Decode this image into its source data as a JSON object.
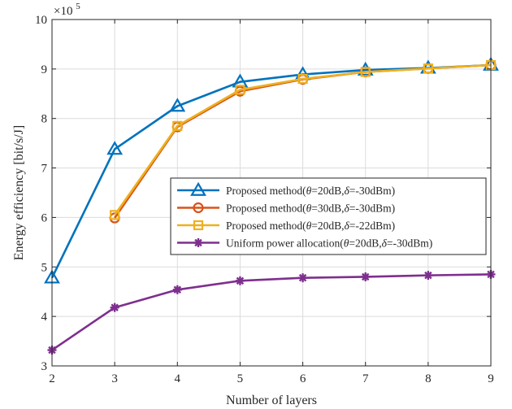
{
  "chart_data": {
    "type": "line",
    "xlabel": "Number of layers",
    "ylabel": "Energy efficiency [bit/s/J]",
    "y_exponent_label": "×10",
    "y_exponent_power": "5",
    "y_scale_factor": 100000,
    "xlim": [
      2,
      9
    ],
    "ylim": [
      3,
      10
    ],
    "x_ticks": [
      "2",
      "3",
      "4",
      "5",
      "6",
      "7",
      "8",
      "9"
    ],
    "y_ticks": [
      "3",
      "4",
      "5",
      "6",
      "7",
      "8",
      "9",
      "10"
    ],
    "grid": true,
    "legend_position": "center-right",
    "series": [
      {
        "name_parts": [
          "Proposed method(",
          "θ",
          "=20dB,",
          "δ",
          "=-30dBm)"
        ],
        "color": "#0072BD",
        "marker": "triangle",
        "x": [
          2,
          3,
          4,
          5,
          6,
          7,
          8,
          9
        ],
        "values": [
          4.78,
          7.38,
          8.25,
          8.74,
          8.89,
          8.98,
          9.02,
          9.08
        ]
      },
      {
        "name_parts": [
          "Proposed method(",
          "θ",
          "=30dB,",
          "δ",
          "=-30dBm)"
        ],
        "color": "#D95319",
        "marker": "circle",
        "x": [
          3,
          4,
          5,
          6,
          7,
          8,
          9
        ],
        "values": [
          5.99,
          7.83,
          8.55,
          8.79,
          8.94,
          9.01,
          9.08
        ]
      },
      {
        "name_parts": [
          "Proposed method(",
          "θ",
          "=20dB,",
          "δ",
          "=-22dBm)"
        ],
        "color": "#EDB120",
        "marker": "square",
        "x": [
          3,
          4,
          5,
          6,
          7,
          8,
          9
        ],
        "values": [
          6.05,
          7.85,
          8.58,
          8.8,
          8.94,
          9.01,
          9.08
        ]
      },
      {
        "name_parts": [
          "Uniform power allocation(",
          "θ",
          "=20dB,",
          "δ",
          "=-30dBm)"
        ],
        "color": "#7E2F8E",
        "marker": "asterisk",
        "x": [
          2,
          3,
          4,
          5,
          6,
          7,
          8,
          9
        ],
        "values": [
          3.32,
          4.18,
          4.54,
          4.72,
          4.78,
          4.8,
          4.83,
          4.85
        ]
      }
    ]
  }
}
